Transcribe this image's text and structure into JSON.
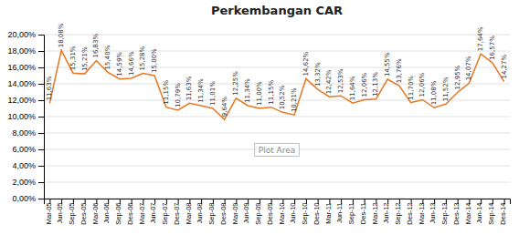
{
  "chart_data": {
    "type": "line",
    "title": "Perkembangan CAR",
    "categories": [
      "Mar-05",
      "Jun-05",
      "Sep-05",
      "Des-05",
      "Mar-06",
      "Jun-06",
      "Sep-06",
      "Des-06",
      "Mar-07",
      "Jun-07",
      "Sep-07",
      "Des-07",
      "Mar-08",
      "Jun-08",
      "Sep-08",
      "Des-08",
      "Mar-09",
      "Jun-09",
      "Sep-09",
      "Des-09",
      "Mar-10",
      "Jun-10",
      "Sep-10",
      "Des-10",
      "Mar-11",
      "Jun-11",
      "Sep-11",
      "Des-11",
      "Mar-12",
      "Jun-12",
      "Sep-12",
      "Des-12",
      "Mar-13",
      "Jun-13",
      "Sep-13",
      "Des-13",
      "Mar-14",
      "Jun-14",
      "Sep-14",
      "Des-14"
    ],
    "values": [
      11.63,
      18.08,
      15.31,
      15.21,
      16.83,
      15.4,
      14.59,
      14.66,
      15.28,
      15.0,
      11.15,
      10.79,
      11.63,
      11.34,
      11.01,
      9.64,
      12.25,
      11.34,
      11.0,
      11.15,
      10.52,
      10.21,
      14.62,
      13.32,
      12.42,
      12.53,
      11.64,
      12.06,
      12.13,
      14.55,
      13.76,
      11.7,
      12.06,
      11.08,
      11.52,
      12.95,
      14.07,
      17.64,
      16.57,
      14.27
    ],
    "value_labels": [
      "11,63%",
      "18,08%",
      "15,31%",
      "15,21%",
      "16,83%",
      "15,40%",
      "14,59%",
      "14,66%",
      "15,28%",
      "15,00%",
      "11,15%",
      "10,79%",
      "11,63%",
      "11,34%",
      "11,01%",
      "9,64%",
      "12,25%",
      "11,34%",
      "11,00%",
      "11,15%",
      "10,52%",
      "10,21%",
      "14,62%",
      "13,32%",
      "12,42%",
      "12,53%",
      "11,64%",
      "12,06%",
      "12,13%",
      "14,55%",
      "13,76%",
      "11,70%",
      "12,06%",
      "11,08%",
      "11,52%",
      "12,95%",
      "14,07%",
      "17,64%",
      "16,57%",
      "14,27%"
    ],
    "data_labels": true,
    "color": "#E87722",
    "annotation": "Plot Area",
    "ylim": [
      0,
      20
    ],
    "yticks": [
      {
        "value": 0,
        "label": "0,00%"
      },
      {
        "value": 2,
        "label": "2,00%"
      },
      {
        "value": 4,
        "label": "4,00%"
      },
      {
        "value": 6,
        "label": "6,00%"
      },
      {
        "value": 8,
        "label": "8,00%"
      },
      {
        "value": 10,
        "label": "10,00%"
      },
      {
        "value": 12,
        "label": "12,00%"
      },
      {
        "value": 14,
        "label": "14,00%"
      },
      {
        "value": 16,
        "label": "16,00%"
      },
      {
        "value": 18,
        "label": "18,00%"
      },
      {
        "value": 20,
        "label": "20,00%"
      }
    ],
    "grid": true
  }
}
